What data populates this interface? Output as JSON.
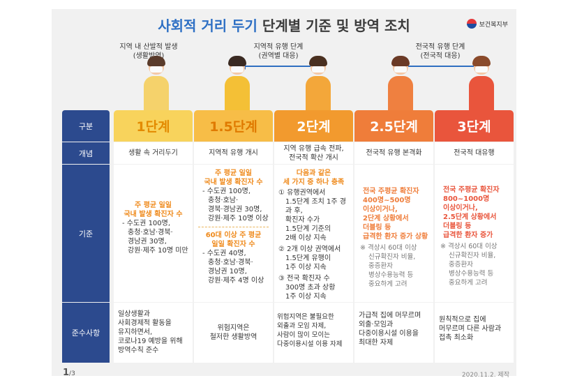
{
  "header": {
    "title_highlight": "사회적 거리 두기",
    "title_rest": "단계별 기준 및 방역 조치",
    "ministry": "보건복지부"
  },
  "notes": {
    "left": [
      "지역 내 산발적 발생",
      "(생활방역)"
    ],
    "middle": [
      "지역적 유행 단계",
      "(권역별 대응)"
    ],
    "right": [
      "전국적 유행 단계",
      "(전국적 대응)"
    ]
  },
  "row_labels": {
    "header": "구분",
    "concept": "개념",
    "criteria": "기준",
    "compliance": "준수사항"
  },
  "columns": [
    {
      "name": "1단계",
      "color": "#f6c343",
      "header_text_color": "#e38a00",
      "concept": "생활 속 거리두기",
      "criteria_emph": [
        "주 평균 일일",
        "국내 발생 확진자 수"
      ],
      "criteria_items": [
        "- 수도권 100명,",
        "충청·호남·경북·",
        "경남권 30명,",
        "강원·제주 10명 미만"
      ],
      "compliance": [
        "일상생활과",
        "사회경제적 활동을",
        "유지하면서,",
        "코로나19 예방을 위해",
        "방역수칙 준수"
      ]
    },
    {
      "name": "1.5단계",
      "color": "#f6b13b",
      "header_text_color": "#e07a00",
      "concept": "지역적 유행 개시",
      "criteria_emph1": [
        "주 평균 일일",
        "국내 발생 확진자 수"
      ],
      "criteria_items1": [
        "- 수도권 100명,",
        "충청·호남·",
        "경북·경남권 30명,",
        "강원·제주 10명 이상"
      ],
      "criteria_emph2": [
        "60대 이상 주 평균",
        "일일 확진자 수"
      ],
      "criteria_items2": [
        "- 수도권 40명,",
        "충청·호남·경북·",
        "경남권 10명,",
        "강원·제주 4명 이상"
      ],
      "compliance": [
        "위험지역은",
        "철저한 생활방역"
      ]
    },
    {
      "name": "2단계",
      "color": "#f29a2e",
      "header_text_color": "#ffffff",
      "concept": [
        "지역 유행 급속 전파,",
        "전국적 확산 개시"
      ],
      "criteria_emph": [
        "다음과 같은",
        "세 가지 중 하나 충족"
      ],
      "criteria_items": [
        "① 유행권역에서",
        "1.5단계 조치 1주 경과 후,",
        "확진자 수가",
        "1.5단계 기준의",
        "2배 이상 지속",
        "② 2개 이상 권역에서",
        "1.5단계 유행이",
        "1주 이상 지속",
        "③ 전국 확진자 수",
        "300명 초과 상황",
        "1주 이상 지속"
      ],
      "compliance": [
        "위험지역은 불필요한",
        "외출과 모임 자제,",
        "사람이 많이 모이는",
        "다중이용시설 이용 자제"
      ]
    },
    {
      "name": "2.5단계",
      "color": "#ef7d3a",
      "header_text_color": "#ffffff",
      "concept": "전국적 유행 본격화",
      "criteria_emph": [
        "전국 주평균 확진자",
        "400명~500명",
        "이상이거나,",
        "2단계 상황에서",
        "더블링 등",
        "급격한 환자 증가 상황"
      ],
      "criteria_note": [
        "※ 격상시 60대 이상",
        "신규확진자 비율,",
        "중증환자",
        "병상수용능력 등",
        "중요하게 고려"
      ],
      "compliance": [
        "가급적 집에 머무르며",
        "외출·모임과",
        "다중이용시설 이용을",
        "최대한 자제"
      ]
    },
    {
      "name": "3단계",
      "color": "#e9553c",
      "header_text_color": "#ffffff",
      "concept": "전국적 대유행",
      "criteria_emph": [
        "전국 주평균 확진자",
        "800~1000명",
        "이상이거나,",
        "2.5단계 상황에서",
        "더블링 등",
        "급격한 환자 증가"
      ],
      "criteria_note": [
        "※ 격상시 60대 이상",
        "신규확진자 비율,",
        "중증환자",
        "병상수용능력 등",
        "중요하게 고려"
      ],
      "compliance": [
        "원칙적으로 집에",
        "머무르며 다른 사람과",
        "접촉 최소화"
      ]
    }
  ],
  "footer": {
    "page": "1",
    "total": "/3",
    "date": "2020.11.2. 제작"
  }
}
